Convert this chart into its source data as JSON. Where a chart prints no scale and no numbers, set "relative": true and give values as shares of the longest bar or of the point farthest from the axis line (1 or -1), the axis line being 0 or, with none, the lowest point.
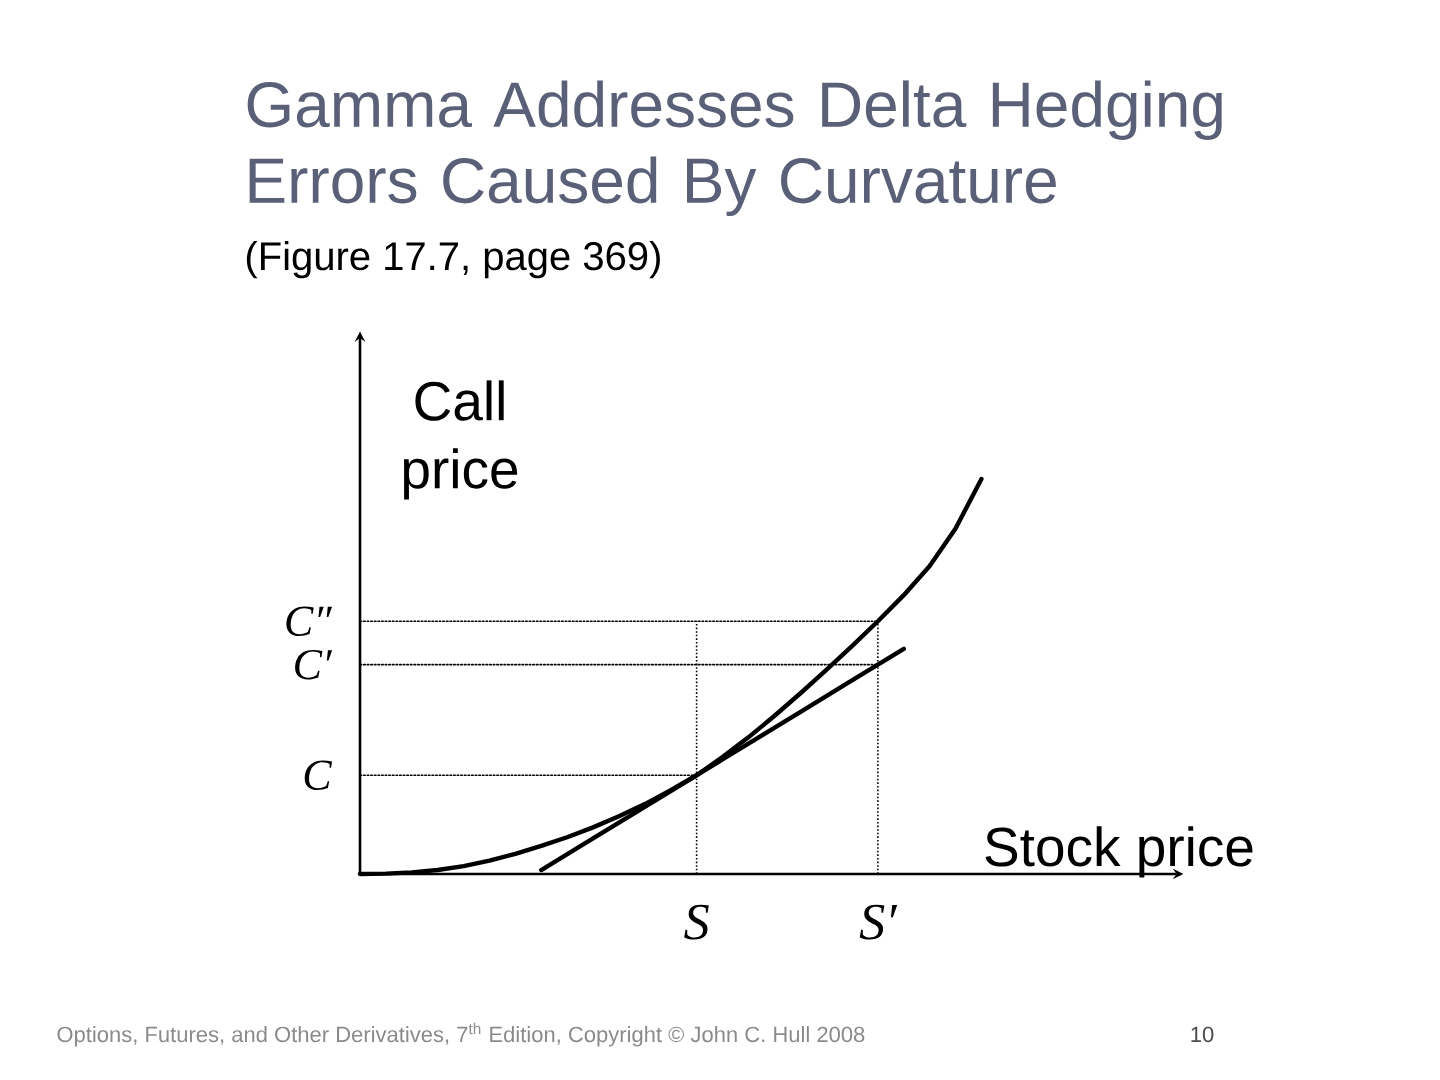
{
  "chart_data": {
    "type": "line",
    "title": "Gamma Addresses Delta Hedging Errors Caused By Curvature",
    "subtitle": "(Figure 17.7, page 369)",
    "xlabel": "Stock price",
    "ylabel": "Call price",
    "relative": true,
    "categories": [
      null,
      null,
      null,
      null,
      null,
      null,
      null,
      null,
      null,
      null,
      null,
      null,
      null,
      "S",
      null,
      null,
      null,
      null,
      null,
      null,
      "S′",
      null,
      null,
      null,
      null
    ],
    "series": [
      {
        "color": "#000000",
        "values": [
          0,
          0.001,
          0.004,
          0.01,
          0.02,
          0.034,
          0.051,
          0.071,
          0.093,
          0.118,
          0.146,
          0.177,
          0.212,
          0.25,
          0.296,
          0.346,
          0.4,
          0.457,
          0.516,
          0.577,
          0.64,
          0.706,
          0.78,
          0.875,
          1.0
        ]
      },
      {
        "color": "#000000",
        "values": [
          null,
          null,
          null,
          null,
          null,
          null,
          null,
          0.01,
          0.05,
          0.09,
          0.13,
          0.17,
          0.21,
          0.25,
          0.29,
          0.33,
          0.37,
          0.41,
          0.45,
          0.49,
          0.53,
          0.57,
          null,
          null,
          null
        ]
      },
      {
        "name": "C″",
        "color": "#000000",
        "line_style": "dotted",
        "values": [
          0.64,
          0.64,
          0.64,
          0.64,
          0.64,
          0.64,
          0.64,
          0.64,
          0.64,
          0.64,
          0.64,
          0.64,
          0.64,
          0.64,
          0.64,
          0.64,
          0.64,
          0.64,
          0.64,
          0.64,
          0.64,
          null,
          null,
          null,
          null
        ]
      },
      {
        "name": "C′",
        "color": "#000000",
        "line_style": "dotted",
        "values": [
          0.53,
          0.53,
          0.53,
          0.53,
          0.53,
          0.53,
          0.53,
          0.53,
          0.53,
          0.53,
          0.53,
          0.53,
          0.53,
          0.53,
          0.53,
          0.53,
          0.53,
          0.53,
          0.53,
          0.53,
          0.53,
          null,
          null,
          null,
          null
        ]
      },
      {
        "name": "C",
        "color": "#000000",
        "line_style": "dotted",
        "values": [
          0.25,
          0.25,
          0.25,
          0.25,
          0.25,
          0.25,
          0.25,
          0.25,
          0.25,
          0.25,
          0.25,
          0.25,
          0.25,
          0.25,
          null,
          null,
          null,
          null,
          null,
          null,
          null,
          null,
          null,
          null,
          null
        ]
      }
    ],
    "ref_lines": [
      {
        "axis": "x",
        "value": "S",
        "color": "#000000",
        "line_style": "dotted"
      },
      {
        "axis": "x",
        "value": "S′",
        "color": "#000000",
        "line_style": "dotted"
      }
    ],
    "annotations": [
      "Options, Futures, and Other Derivatives, 7$^{th}$ Edition, Copyright © John C. Hull 2008",
      "10"
    ]
  }
}
